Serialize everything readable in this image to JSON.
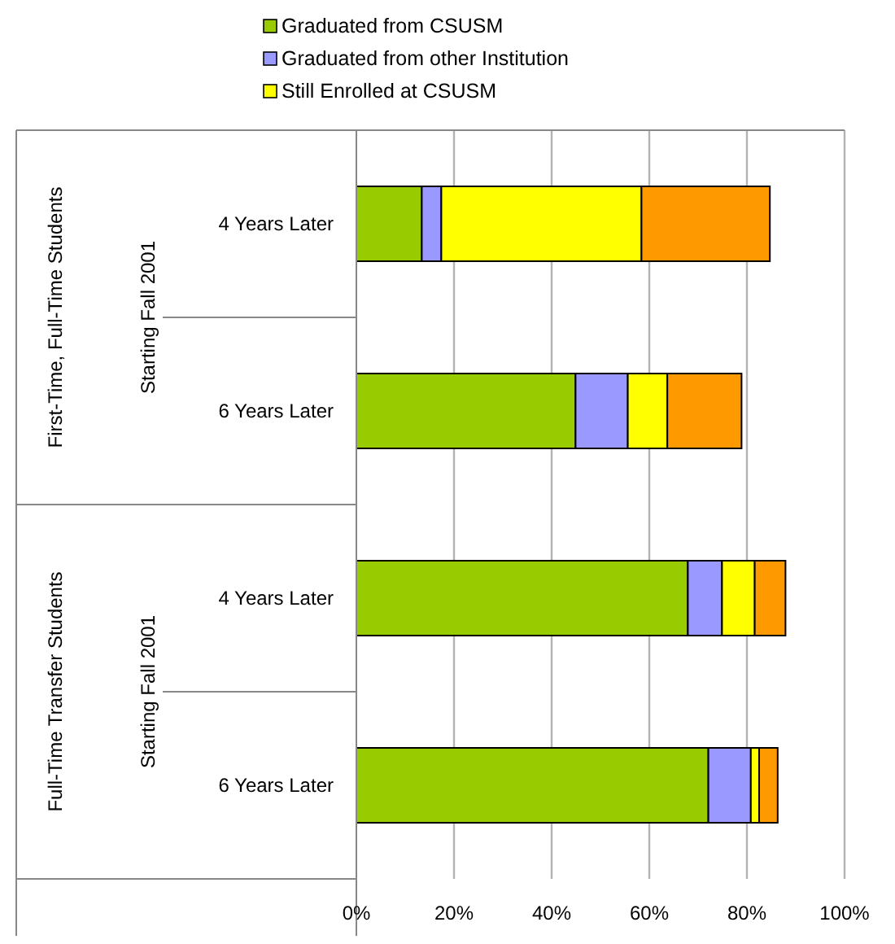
{
  "chart_data": {
    "type": "bar",
    "orientation": "horizontal",
    "stacked": true,
    "categories": [
      "4 Years Later",
      "6 Years Later",
      "4 Years Later",
      "6 Years Later"
    ],
    "series": [
      {
        "name": "Graduated from CSUSM",
        "color": "#99cc00",
        "values": [
          13.4,
          44.9,
          67.9,
          72.1
        ]
      },
      {
        "name": "Graduated from other Institution",
        "color": "#9999ff",
        "values": [
          4,
          10.7,
          7,
          8.7
        ]
      },
      {
        "name": "Still Enrolled at CSUSM",
        "color": "#ffff00",
        "values": [
          41,
          8.1,
          6.7,
          1.7
        ]
      },
      {
        "color": "#ff9900",
        "values": [
          26.3,
          15.2,
          6.3,
          3.8
        ]
      }
    ],
    "xlim": [
      0,
      100
    ],
    "xticks": [
      {
        "value": 0,
        "label": "0%"
      },
      {
        "value": 20,
        "label": "20%"
      },
      {
        "value": 40,
        "label": "40%"
      },
      {
        "value": 60,
        "label": "60%"
      },
      {
        "value": 80,
        "label": "80%"
      },
      {
        "value": 100,
        "label": "100%"
      }
    ],
    "grid": "x",
    "legend": "top",
    "annotations": [
      "First-Time, Full-Time Students",
      "Starting Fall 2001",
      "Full-Time Transfer Students",
      "Starting Fall 2001"
    ]
  }
}
